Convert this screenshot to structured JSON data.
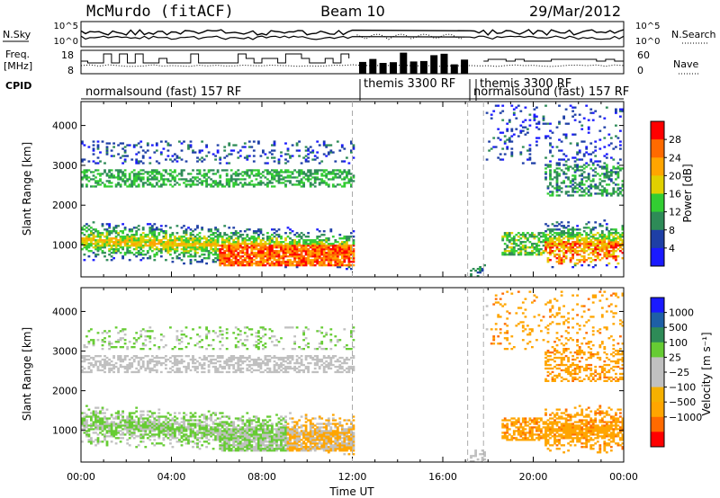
{
  "header": {
    "station": "McMurdo (fitACF)",
    "beam": "Beam 10",
    "date": "29/Mar/2012"
  },
  "noise_panel": {
    "left_label": "N.Sky",
    "right_label": "N.Search",
    "tick_hi": "10^5",
    "tick_lo": "10^0",
    "right_tick_hi": "10^5",
    "right_tick_lo": "10^0"
  },
  "freq_panel": {
    "left_label_line1": "Freq.",
    "left_label_line2": "[MHz]",
    "right_label": "Nave",
    "tick_hi": "18",
    "tick_lo": "8",
    "right_tick_hi": "60",
    "right_tick_lo": "0"
  },
  "cpid": {
    "label": "CPID",
    "segments": [
      "normalsound (fast) 157 RF",
      "themis 3300 RF",
      "themis 3300 RF",
      "normalsound (fast) 157 RF"
    ]
  },
  "colors": {
    "power_scale": [
      "#1a1aff",
      "#1e3fa6",
      "#2e8b57",
      "#32cd32",
      "#e0d000",
      "#ffa500",
      "#ff6a00",
      "#ff0000"
    ],
    "velocity_scale": [
      "#ff0000",
      "#ff6a00",
      "#ffa500",
      "#f5b000",
      "#c0c0c0",
      "#c0c0c0",
      "#66cc33",
      "#2e8b57",
      "#1e5fa6",
      "#1a1aff"
    ]
  },
  "chart_data": [
    {
      "type": "heatmap",
      "name": "power",
      "ylabel": "Slant Range [km]",
      "y_ticks": [
        "1000",
        "2000",
        "3000",
        "4000"
      ],
      "ylim": [
        200,
        4600
      ],
      "xlim": [
        0,
        24
      ],
      "x_ticks": [
        "00:00",
        "04:00",
        "08:00",
        "12:00",
        "16:00",
        "20:00",
        "00:00"
      ],
      "colorbar_label": "Power [dB]",
      "colorbar_ticks": [
        "4",
        "8",
        "12",
        "16",
        "20",
        "24",
        "28"
      ],
      "data_gaps": [
        [
          12.0,
          17.1
        ]
      ],
      "dashed_markers": [
        12.0,
        17.1,
        17.8
      ]
    },
    {
      "type": "heatmap",
      "name": "velocity",
      "ylabel": "Slant Range [km]",
      "y_ticks": [
        "1000",
        "2000",
        "3000",
        "4000"
      ],
      "ylim": [
        200,
        4600
      ],
      "xlim": [
        0,
        24
      ],
      "x_ticks": [
        "00:00",
        "04:00",
        "08:00",
        "12:00",
        "16:00",
        "20:00",
        "00:00"
      ],
      "xlabel": "Time UT",
      "colorbar_label": "Velocity [m s⁻¹]",
      "colorbar_ticks": [
        "1000",
        "500",
        "100",
        "25",
        "−25",
        "−100",
        "−500",
        "−1000"
      ],
      "data_gaps": [
        [
          12.0,
          17.1
        ]
      ],
      "dashed_markers": [
        12.0,
        17.1,
        17.8
      ]
    }
  ]
}
